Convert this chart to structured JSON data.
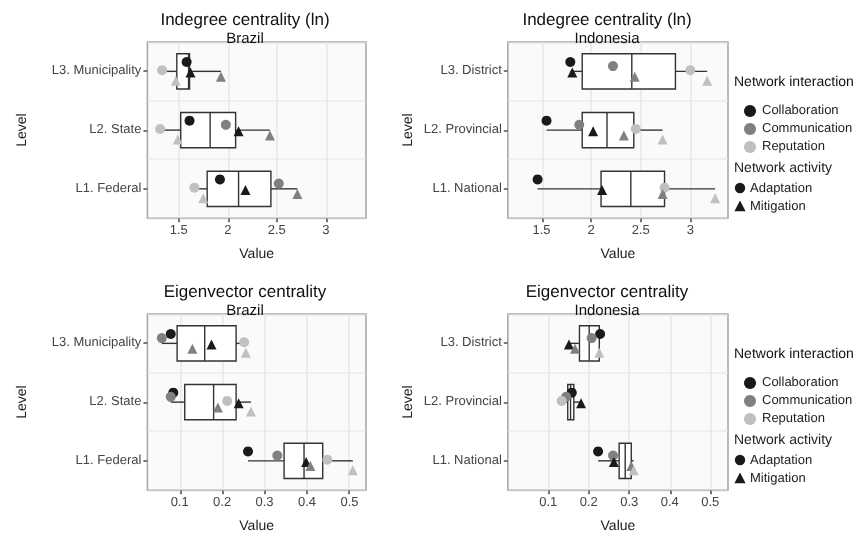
{
  "chart_data": [
    {
      "type": "box",
      "orientation": "horizontal",
      "title": "Indegree centrality (ln)",
      "subtitle": "Brazil",
      "xlabel": "Value",
      "ylabel": "Level",
      "categories": [
        "L3. Municipality",
        "L2. State",
        "L1. Federal"
      ],
      "xlim": [
        1.18,
        3.41
      ],
      "xticks": [
        1.5,
        2,
        2.5,
        3
      ],
      "grid": true,
      "legend": false,
      "boxes": [
        {
          "low": 1.33,
          "q1": 1.48,
          "median": 1.6,
          "q3": 1.61,
          "high": 1.93
        },
        {
          "low": 1.31,
          "q1": 1.52,
          "median": 1.82,
          "q3": 2.08,
          "high": 2.43
        },
        {
          "low": 1.66,
          "q1": 1.79,
          "median": 2.11,
          "q3": 2.44,
          "high": 2.71
        }
      ],
      "series": [
        {
          "type": "scatter",
          "color": "#1a1a1a",
          "marker": "circle",
          "x": [
            "L3. Municipality",
            "L2. State",
            "L1. Federal"
          ],
          "values": [
            1.58,
            1.61,
            1.92
          ]
        },
        {
          "type": "scatter",
          "color": "#808080",
          "marker": "circle",
          "x": [
            "L3. Municipality",
            "L2. State",
            "L1. Federal"
          ],
          "values": [
            null,
            1.98,
            2.52
          ]
        },
        {
          "type": "scatter",
          "color": "#c0c0c0",
          "marker": "circle",
          "x": [
            "L3. Municipality",
            "L2. State",
            "L1. Federal"
          ],
          "values": [
            1.33,
            1.31,
            1.66
          ]
        },
        {
          "type": "scatter",
          "color": "#1a1a1a",
          "marker": "triangle",
          "x": [
            "L3. Municipality",
            "L2. State",
            "L1. Federal"
          ],
          "values": [
            1.62,
            2.11,
            2.18
          ]
        },
        {
          "type": "scatter",
          "color": "#808080",
          "marker": "triangle",
          "x": [
            "L3. Municipality",
            "L2. State",
            "L1. Federal"
          ],
          "values": [
            1.93,
            2.43,
            2.71
          ]
        },
        {
          "type": "scatter",
          "color": "#c0c0c0",
          "marker": "triangle",
          "x": [
            "L3. Municipality",
            "L2. State",
            "L1. Federal"
          ],
          "values": [
            1.47,
            1.49,
            1.75
          ]
        }
      ]
    },
    {
      "type": "box",
      "orientation": "horizontal",
      "title": "Indegree centrality (ln)",
      "subtitle": "Indonesia",
      "xlabel": "Value",
      "ylabel": "Level",
      "categories": [
        "L3. District",
        "L2. Provincial",
        "L1. National"
      ],
      "xlim": [
        1.16,
        3.38
      ],
      "xticks": [
        1.5,
        2,
        2.5,
        3
      ],
      "grid": true,
      "legend": "right",
      "legend_title": "Network interaction",
      "annotations": [
        "Network activity",
        "Adaptation",
        "Mitigation"
      ],
      "boxes": [
        {
          "low": 1.79,
          "q1": 1.91,
          "median": 2.41,
          "q3": 2.85,
          "high": 3.17
        },
        {
          "low": 1.55,
          "q1": 1.91,
          "median": 2.16,
          "q3": 2.43,
          "high": 2.72
        },
        {
          "low": 1.46,
          "q1": 2.1,
          "median": 2.4,
          "q3": 2.74,
          "high": 3.25
        }
      ],
      "series": [
        {
          "type": "scatter",
          "name": "Collaboration",
          "color": "#1a1a1a",
          "marker": "circle",
          "x": [
            "L3. District",
            "L2. Provincial",
            "L1. National"
          ],
          "values": [
            1.79,
            1.55,
            1.46
          ]
        },
        {
          "type": "scatter",
          "name": "Communication",
          "color": "#808080",
          "marker": "circle",
          "x": [
            "L3. District",
            "L2. Provincial",
            "L1. National"
          ],
          "values": [
            2.22,
            1.88,
            null
          ]
        },
        {
          "type": "scatter",
          "name": "Reputation",
          "color": "#c0c0c0",
          "marker": "circle",
          "x": [
            "L3. District",
            "L2. Provincial",
            "L1. National"
          ],
          "values": [
            3.0,
            2.45,
            2.74
          ]
        },
        {
          "type": "scatter",
          "color": "#1a1a1a",
          "marker": "triangle",
          "x": [
            "L3. District",
            "L2. Provincial",
            "L1. National"
          ],
          "values": [
            1.81,
            2.02,
            2.11
          ]
        },
        {
          "type": "scatter",
          "color": "#808080",
          "marker": "triangle",
          "x": [
            "L3. District",
            "L2. Provincial",
            "L1. National"
          ],
          "values": [
            2.44,
            2.33,
            2.72
          ]
        },
        {
          "type": "scatter",
          "color": "#c0c0c0",
          "marker": "triangle",
          "x": [
            "L3. District",
            "L2. Provincial",
            "L1. National"
          ],
          "values": [
            3.17,
            2.72,
            3.25
          ]
        }
      ]
    },
    {
      "type": "box",
      "orientation": "horizontal",
      "title": "Eigenvector centrality",
      "subtitle": "Brazil",
      "xlabel": "Value",
      "ylabel": "Level",
      "categories": [
        "L3. Municipality",
        "L2. State",
        "L1. Federal"
      ],
      "xlim": [
        0.024,
        0.539
      ],
      "xticks": [
        0.1,
        0.2,
        0.3,
        0.4,
        0.5
      ],
      "grid": true,
      "legend": false,
      "boxes": [
        {
          "low": 0.058,
          "q1": 0.094,
          "median": 0.159,
          "q3": 0.233,
          "high": 0.256
        },
        {
          "low": 0.079,
          "q1": 0.112,
          "median": 0.18,
          "q3": 0.233,
          "high": 0.268
        },
        {
          "low": 0.261,
          "q1": 0.346,
          "median": 0.393,
          "q3": 0.437,
          "high": 0.508
        }
      ],
      "series": [
        {
          "type": "scatter",
          "color": "#1a1a1a",
          "marker": "circle",
          "x": [
            "L3. Municipality",
            "L2. State",
            "L1. Federal"
          ],
          "values": [
            0.079,
            0.085,
            0.261
          ]
        },
        {
          "type": "scatter",
          "color": "#808080",
          "marker": "circle",
          "x": [
            "L3. Municipality",
            "L2. State",
            "L1. Federal"
          ],
          "values": [
            0.058,
            0.079,
            0.33
          ]
        },
        {
          "type": "scatter",
          "color": "#c0c0c0",
          "marker": "circle",
          "x": [
            "L3. Municipality",
            "L2. State",
            "L1. Federal"
          ],
          "values": [
            0.252,
            0.212,
            0.448
          ]
        },
        {
          "type": "scatter",
          "color": "#1a1a1a",
          "marker": "triangle",
          "x": [
            "L3. Municipality",
            "L2. State",
            "L1. Federal"
          ],
          "values": [
            0.175,
            0.239,
            0.398
          ]
        },
        {
          "type": "scatter",
          "color": "#808080",
          "marker": "triangle",
          "x": [
            "L3. Municipality",
            "L2. State",
            "L1. Federal"
          ],
          "values": [
            0.13,
            0.19,
            0.408
          ]
        },
        {
          "type": "scatter",
          "color": "#c0c0c0",
          "marker": "triangle",
          "x": [
            "L3. Municipality",
            "L2. State",
            "L1. Federal"
          ],
          "values": [
            0.256,
            0.268,
            0.508
          ]
        }
      ]
    },
    {
      "type": "box",
      "orientation": "horizontal",
      "title": "Eigenvector centrality",
      "subtitle": "Indonesia",
      "xlabel": "Value",
      "ylabel": "Level",
      "categories": [
        "L3. District",
        "L2. Provincial",
        "L1. National"
      ],
      "xlim": [
        0.0,
        0.544
      ],
      "xticks": [
        0.1,
        0.2,
        0.3,
        0.4,
        0.5
      ],
      "grid": true,
      "legend": "right",
      "legend_title": "Network interaction",
      "annotations": [
        "Network activity",
        "Adaptation",
        "Mitigation"
      ],
      "boxes": [
        {
          "low": 0.151,
          "q1": 0.177,
          "median": 0.201,
          "q3": 0.226,
          "high": 0.228
        },
        {
          "low": 0.133,
          "q1": 0.148,
          "median": 0.155,
          "q3": 0.163,
          "high": 0.181
        },
        {
          "low": 0.223,
          "q1": 0.275,
          "median": 0.29,
          "q3": 0.305,
          "high": 0.311
        }
      ],
      "series": [
        {
          "type": "scatter",
          "name": "Collaboration",
          "color": "#1a1a1a",
          "marker": "circle",
          "x": [
            "L3. District",
            "L2. Provincial",
            "L1. National"
          ],
          "values": [
            0.228,
            0.158,
            0.223
          ]
        },
        {
          "type": "scatter",
          "name": "Communication",
          "color": "#808080",
          "marker": "circle",
          "x": [
            "L3. District",
            "L2. Provincial",
            "L1. National"
          ],
          "values": [
            0.207,
            0.144,
            0.26
          ]
        },
        {
          "type": "scatter",
          "name": "Reputation",
          "color": "#c0c0c0",
          "marker": "circle",
          "x": [
            "L3. District",
            "L2. Provincial",
            "L1. National"
          ],
          "values": [
            null,
            0.133,
            null
          ]
        },
        {
          "type": "scatter",
          "color": "#1a1a1a",
          "marker": "triangle",
          "x": [
            "L3. District",
            "L2. Provincial",
            "L1. National"
          ],
          "values": [
            0.151,
            0.181,
            0.262
          ]
        },
        {
          "type": "scatter",
          "color": "#808080",
          "marker": "triangle",
          "x": [
            "L3. District",
            "L2. Provincial",
            "L1. National"
          ],
          "values": [
            0.166,
            null,
            0.305
          ]
        },
        {
          "type": "scatter",
          "color": "#c0c0c0",
          "marker": "triangle",
          "x": [
            "L3. District",
            "L2. Provincial",
            "L1. National"
          ],
          "values": [
            0.226,
            null,
            0.311
          ]
        }
      ]
    }
  ]
}
